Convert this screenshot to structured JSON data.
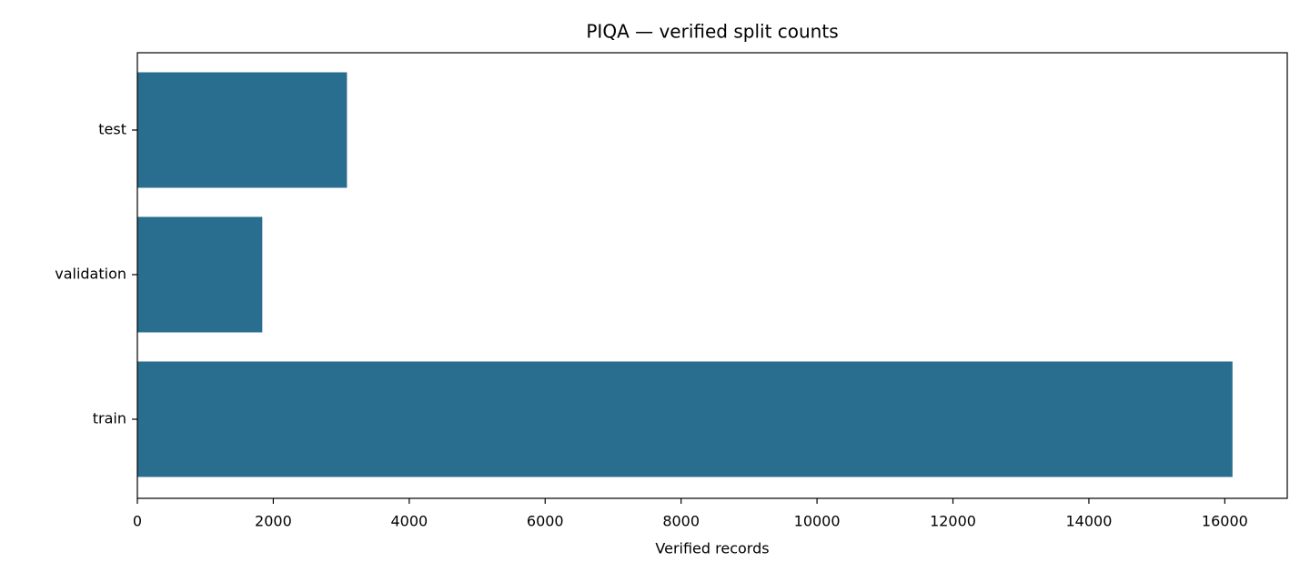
{
  "chart_data": {
    "type": "barh",
    "title": "PIQA — verified split counts",
    "x_label": "Verified records",
    "categories": [
      "train",
      "validation",
      "test"
    ],
    "values": [
      16113,
      1838,
      3084
    ],
    "color": "#296d8f",
    "xlim": [
      0,
      16918.65
    ],
    "xticks": [
      0,
      2000,
      4000,
      6000,
      8000,
      10000,
      12000,
      14000,
      16000
    ],
    "grid": false
  }
}
